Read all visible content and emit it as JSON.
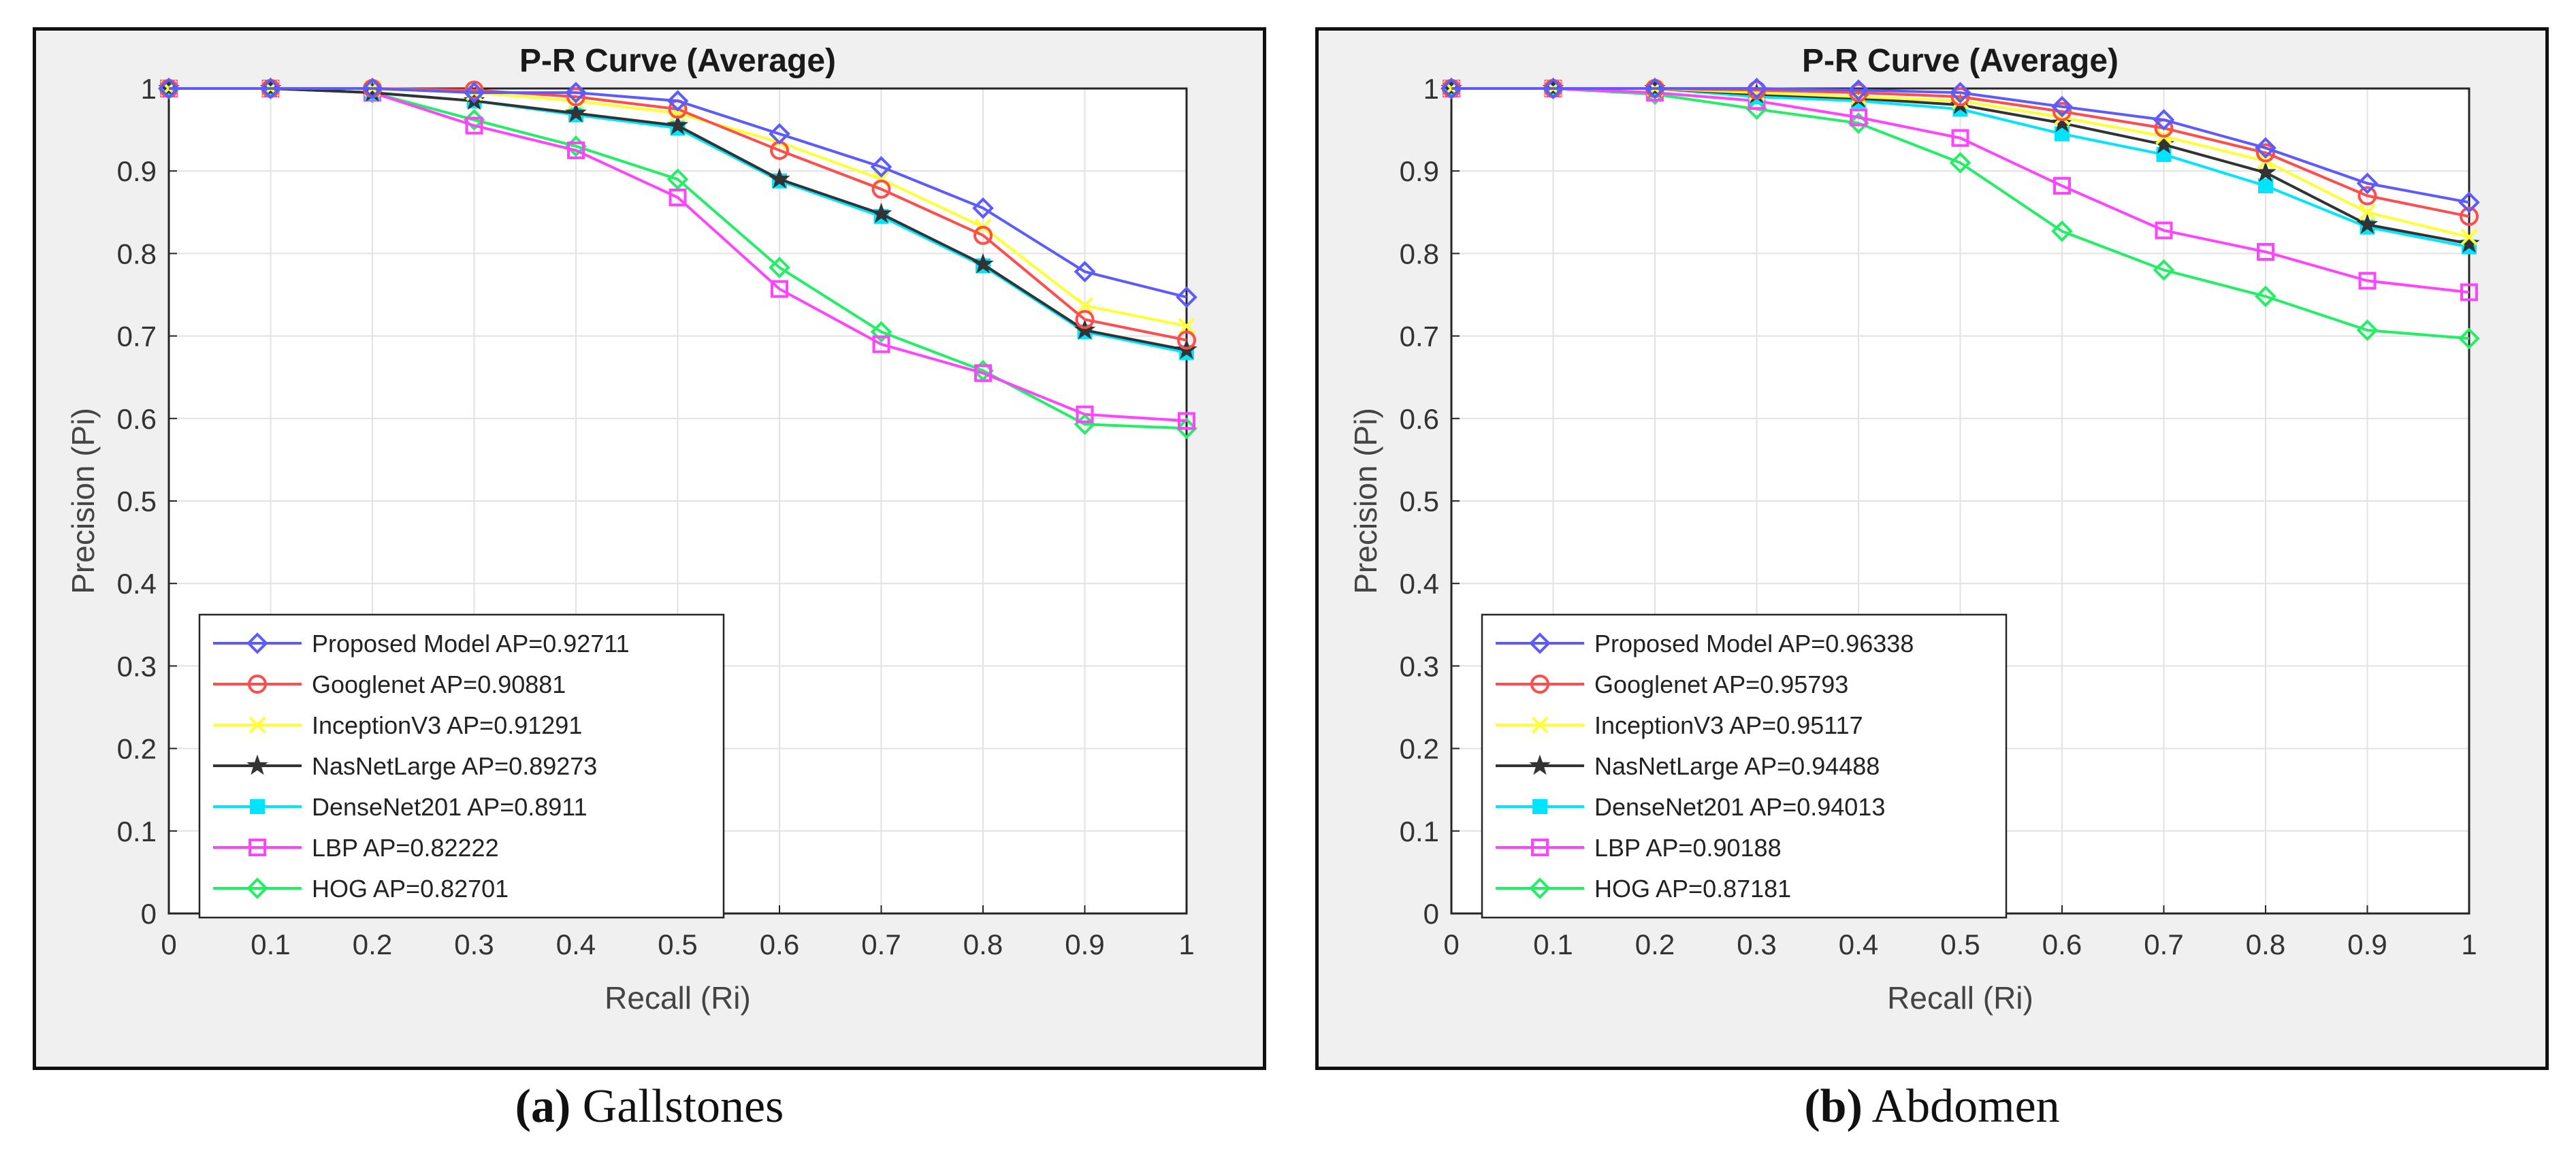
{
  "chart_data": [
    {
      "type": "line",
      "title": "P-R Curve (Average)",
      "xlabel": "Recall (Ri)",
      "ylabel": "Precision (Pi)",
      "xlim": [
        0,
        1
      ],
      "ylim": [
        0,
        1
      ],
      "grid": true,
      "legend_position": "bottom-left",
      "x": [
        0,
        0.1,
        0.2,
        0.3,
        0.4,
        0.5,
        0.6,
        0.7,
        0.8,
        0.9,
        1
      ],
      "x_ticks": [
        "0",
        "0.1",
        "0.2",
        "0.3",
        "0.4",
        "0.5",
        "0.6",
        "0.7",
        "0.8",
        "0.9",
        "1"
      ],
      "y_ticks": [
        "0",
        "0.1",
        "0.2",
        "0.3",
        "0.4",
        "0.5",
        "0.6",
        "0.7",
        "0.8",
        "0.9",
        "1"
      ],
      "series": [
        {
          "name": "Proposed Model AP=0.92711",
          "color": "#5b5bff",
          "marker": "diamond",
          "values": [
            1,
            1,
            1,
            0.995,
            0.995,
            0.985,
            0.945,
            0.905,
            0.855,
            0.778,
            0.747
          ]
        },
        {
          "name": "Googlenet AP=0.90881",
          "color": "#ff4d4d",
          "marker": "circle",
          "values": [
            1,
            1,
            1,
            0.998,
            0.99,
            0.975,
            0.925,
            0.878,
            0.822,
            0.72,
            0.695
          ]
        },
        {
          "name": "InceptionV3 AP=0.91291",
          "color": "#ffff33",
          "marker": "x",
          "values": [
            1,
            1,
            1,
            0.995,
            0.985,
            0.97,
            0.935,
            0.89,
            0.832,
            0.737,
            0.712
          ]
        },
        {
          "name": "NasNetLarge AP=0.89273",
          "color": "#333333",
          "marker": "star",
          "values": [
            1,
            1,
            0.995,
            0.985,
            0.97,
            0.955,
            0.89,
            0.848,
            0.787,
            0.707,
            0.683
          ]
        },
        {
          "name": "DenseNet201 AP=0.8911",
          "color": "#00e5ff",
          "marker": "square-filled",
          "values": [
            1,
            1,
            0.995,
            0.985,
            0.968,
            0.952,
            0.888,
            0.845,
            0.785,
            0.705,
            0.68
          ]
        },
        {
          "name": "LBP AP=0.82222",
          "color": "#ff44ff",
          "marker": "square",
          "values": [
            1,
            1,
            0.995,
            0.955,
            0.925,
            0.868,
            0.757,
            0.69,
            0.655,
            0.605,
            0.597
          ]
        },
        {
          "name": "HOG AP=0.82701",
          "color": "#22ee66",
          "marker": "diamond",
          "values": [
            1,
            1,
            0.995,
            0.962,
            0.93,
            0.89,
            0.783,
            0.705,
            0.658,
            0.593,
            0.588
          ]
        }
      ],
      "caption_letter": "(a)",
      "caption_text": "Gallstones"
    },
    {
      "type": "line",
      "title": "P-R Curve (Average)",
      "xlabel": "Recall (Ri)",
      "ylabel": "Precision (Pi)",
      "xlim": [
        0,
        1
      ],
      "ylim": [
        0,
        1
      ],
      "grid": true,
      "legend_position": "bottom-left",
      "x": [
        0,
        0.1,
        0.2,
        0.3,
        0.4,
        0.5,
        0.6,
        0.7,
        0.8,
        0.9,
        1
      ],
      "x_ticks": [
        "0",
        "0.1",
        "0.2",
        "0.3",
        "0.4",
        "0.5",
        "0.6",
        "0.7",
        "0.8",
        "0.9",
        "1"
      ],
      "y_ticks": [
        "0",
        "0.1",
        "0.2",
        "0.3",
        "0.4",
        "0.5",
        "0.6",
        "0.7",
        "0.8",
        "0.9",
        "1"
      ],
      "series": [
        {
          "name": "Proposed Model AP=0.96338",
          "color": "#5b5bff",
          "marker": "diamond",
          "values": [
            1,
            1,
            1,
            1,
            0.998,
            0.995,
            0.978,
            0.962,
            0.928,
            0.885,
            0.862
          ]
        },
        {
          "name": "Googlenet AP=0.95793",
          "color": "#ff4d4d",
          "marker": "circle",
          "values": [
            1,
            1,
            1,
            0.998,
            0.995,
            0.99,
            0.972,
            0.952,
            0.922,
            0.87,
            0.845
          ]
        },
        {
          "name": "InceptionV3 AP=0.95117",
          "color": "#ffff33",
          "marker": "x",
          "values": [
            1,
            1,
            1,
            0.995,
            0.99,
            0.985,
            0.965,
            0.942,
            0.912,
            0.85,
            0.82
          ]
        },
        {
          "name": "NasNetLarge AP=0.94488",
          "color": "#333333",
          "marker": "star",
          "values": [
            1,
            1,
            1,
            0.993,
            0.988,
            0.98,
            0.958,
            0.932,
            0.898,
            0.835,
            0.812
          ]
        },
        {
          "name": "DenseNet201 AP=0.94013",
          "color": "#00e5ff",
          "marker": "square-filled",
          "values": [
            1,
            1,
            1,
            0.99,
            0.985,
            0.975,
            0.945,
            0.92,
            0.882,
            0.832,
            0.808
          ]
        },
        {
          "name": "LBP AP=0.90188",
          "color": "#ff44ff",
          "marker": "square",
          "values": [
            1,
            1,
            0.995,
            0.985,
            0.965,
            0.94,
            0.882,
            0.828,
            0.802,
            0.767,
            0.753
          ]
        },
        {
          "name": "HOG AP=0.87181",
          "color": "#22ee66",
          "marker": "diamond",
          "values": [
            1,
            1,
            0.993,
            0.975,
            0.958,
            0.91,
            0.827,
            0.78,
            0.748,
            0.707,
            0.697
          ]
        }
      ],
      "caption_letter": "(b)",
      "caption_text": "Abdomen"
    }
  ]
}
